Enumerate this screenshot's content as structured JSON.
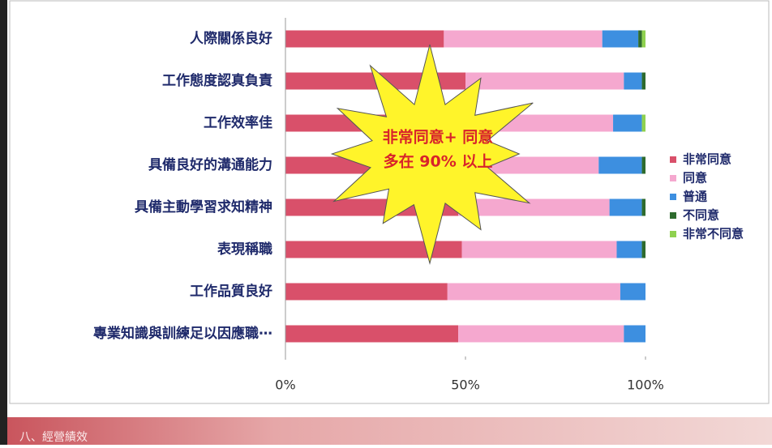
{
  "chart_data": {
    "type": "stacked-bar-horizontal",
    "categories": [
      "人際關係良好",
      "工作態度認真負責",
      "工作效率佳",
      "具備良好的溝通能力",
      "具備主動學習求知精神",
      "表現稱職",
      "工作品質良好",
      "專業知識與訓練足以因應職⋯"
    ],
    "series": [
      {
        "name": "非常同意",
        "color": "#d9506a",
        "values": [
          44,
          50,
          48,
          47,
          48,
          49,
          45,
          48
        ]
      },
      {
        "name": "同意",
        "color": "#f5a8cf",
        "values": [
          44,
          44,
          43,
          40,
          42,
          43,
          48,
          46
        ]
      },
      {
        "name": "普通",
        "color": "#3d8fe0",
        "values": [
          10,
          5,
          8,
          12,
          9,
          7,
          7,
          6
        ]
      },
      {
        "name": "不同意",
        "color": "#2e6b2e",
        "values": [
          1,
          1,
          0,
          1,
          1,
          1,
          0,
          0
        ]
      },
      {
        "name": "非常不同意",
        "color": "#8fd14f",
        "values": [
          1,
          0,
          1,
          0,
          0,
          0,
          0,
          0
        ]
      }
    ],
    "xlim": [
      0,
      100
    ],
    "xticks": [
      {
        "value": 0,
        "label": "0%"
      },
      {
        "value": 50,
        "label": "50%"
      },
      {
        "value": 100,
        "label": "100%"
      }
    ],
    "annotations": [
      "非常同意+ 同意",
      "多在 90% 以上"
    ],
    "legend": "right"
  },
  "footer": "八、經營績效"
}
